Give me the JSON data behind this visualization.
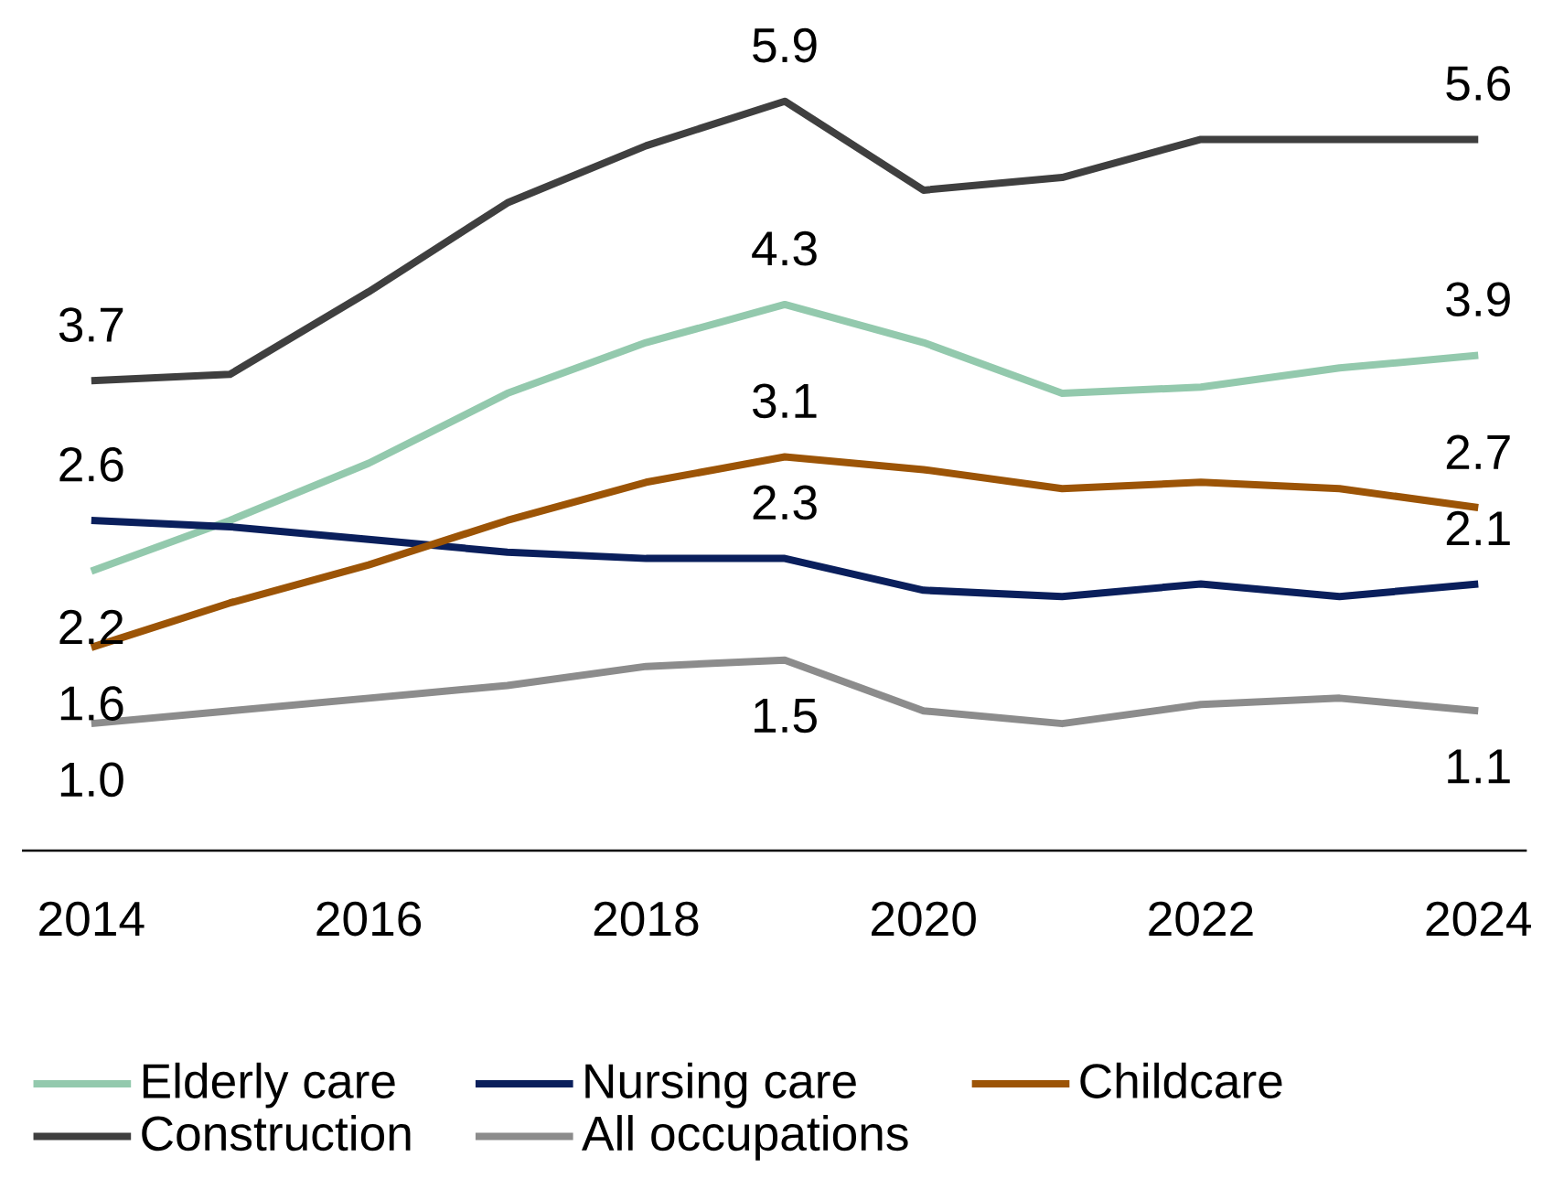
{
  "chart_data": {
    "type": "line",
    "x": [
      2014,
      2015,
      2016,
      2017,
      2018,
      2019,
      2020,
      2021,
      2022,
      2023,
      2024
    ],
    "xlim": [
      2013.5,
      2024.35
    ],
    "xticks": [
      2014,
      2016,
      2018,
      2020,
      2022,
      2024
    ],
    "tick_labels": "x",
    "grid": false,
    "legend": "bottom",
    "marker": "none",
    "line_style": "solid",
    "series": [
      {
        "name": "Elderly care",
        "color": "#93c9ad",
        "values": [
          2.2,
          2.6,
          3.05,
          3.6,
          4.0,
          4.3,
          4.0,
          3.6,
          3.65,
          3.8,
          3.9
        ],
        "value_labels": [
          "2.2",
          null,
          null,
          null,
          null,
          "4.3",
          null,
          null,
          null,
          null,
          "3.9"
        ]
      },
      {
        "name": "Nursing care",
        "color": "#0a1f5c",
        "values": [
          2.6,
          2.55,
          2.45,
          2.35,
          2.3,
          2.3,
          2.05,
          2.0,
          2.1,
          2.0,
          2.1
        ],
        "value_labels": [
          "2.6",
          null,
          null,
          null,
          null,
          "2.3",
          null,
          null,
          null,
          null,
          "2.1"
        ]
      },
      {
        "name": "Childcare",
        "color": "#9c5406",
        "values": [
          1.6,
          1.95,
          2.25,
          2.6,
          2.9,
          3.1,
          3.0,
          2.85,
          2.9,
          2.85,
          2.7
        ],
        "value_labels": [
          "1.6",
          null,
          null,
          null,
          null,
          "3.1",
          null,
          null,
          null,
          null,
          "2.7"
        ]
      },
      {
        "name": "Construction",
        "color": "#3f3f3f",
        "values": [
          3.7,
          3.75,
          4.4,
          5.1,
          5.55,
          5.9,
          5.2,
          5.3,
          5.6,
          5.6,
          5.6
        ],
        "value_labels": [
          "3.7",
          null,
          null,
          null,
          null,
          "5.9",
          null,
          null,
          null,
          null,
          "5.6"
        ]
      },
      {
        "name": "All occupations",
        "color": "#8c8c8c",
        "values": [
          1.0,
          1.1,
          1.2,
          1.3,
          1.45,
          1.5,
          1.1,
          1.0,
          1.15,
          1.2,
          1.1
        ],
        "value_labels": [
          "1.0",
          null,
          null,
          null,
          null,
          "1.5",
          null,
          null,
          null,
          null,
          "1.1"
        ]
      }
    ]
  }
}
